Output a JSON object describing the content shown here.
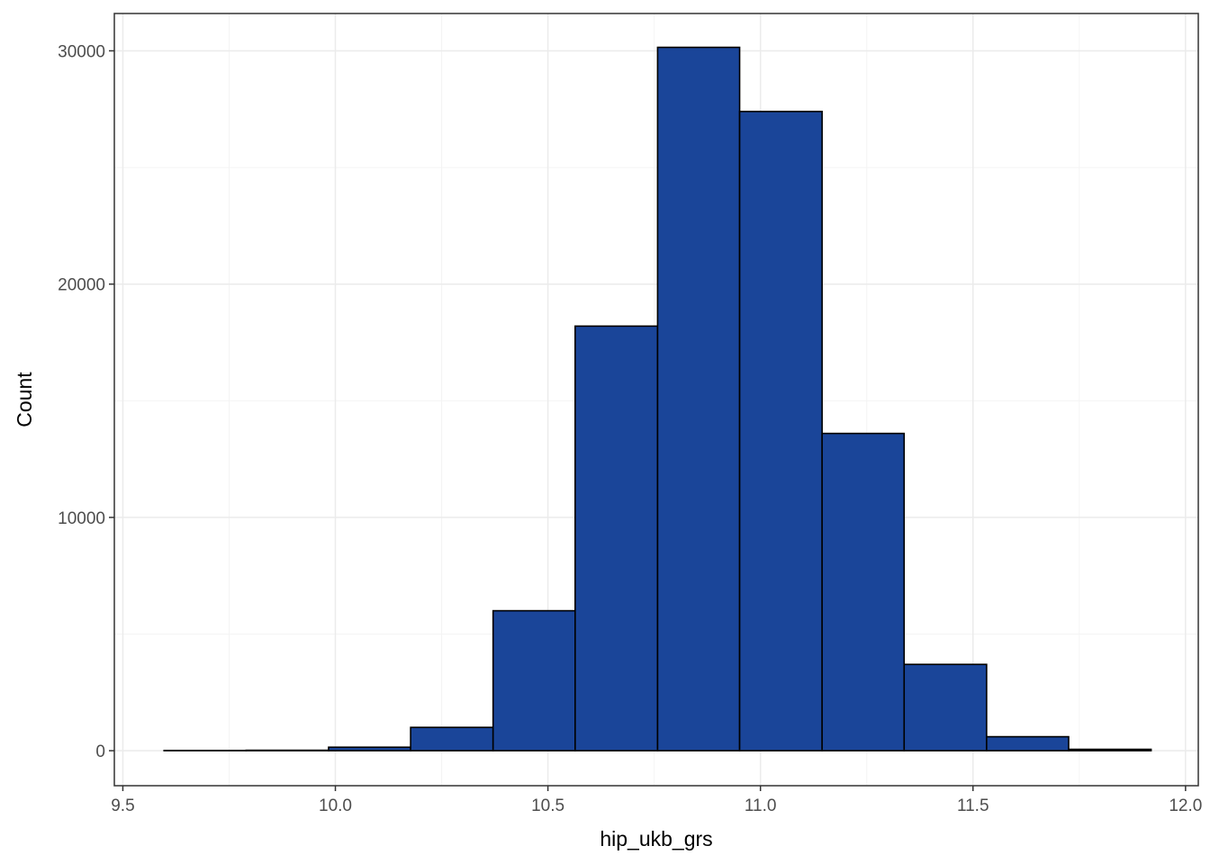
{
  "chart_data": {
    "type": "histogram",
    "title": "",
    "xlabel": "hip_ukb_grs",
    "ylabel": "Count",
    "xlim": [
      9.48,
      12.03
    ],
    "ylim": [
      -1500,
      31600
    ],
    "x_ticks": [
      9.5,
      10.0,
      10.5,
      11.0,
      11.5,
      12.0
    ],
    "x_tick_labels": [
      "9.5",
      "10.0",
      "10.5",
      "11.0",
      "11.5",
      "12.0"
    ],
    "y_ticks": [
      0,
      10000,
      20000,
      30000
    ],
    "y_tick_labels": [
      "0",
      "10000",
      "20000",
      "30000"
    ],
    "grid": true,
    "bins": [
      {
        "x0": 9.597,
        "x1": 9.79,
        "count": 10
      },
      {
        "x0": 9.79,
        "x1": 9.984,
        "count": 20
      },
      {
        "x0": 9.984,
        "x1": 10.177,
        "count": 150
      },
      {
        "x0": 10.177,
        "x1": 10.371,
        "count": 1000
      },
      {
        "x0": 10.371,
        "x1": 10.564,
        "count": 6000
      },
      {
        "x0": 10.564,
        "x1": 10.758,
        "count": 18200
      },
      {
        "x0": 10.758,
        "x1": 10.951,
        "count": 30150
      },
      {
        "x0": 10.951,
        "x1": 11.145,
        "count": 27400
      },
      {
        "x0": 11.145,
        "x1": 11.338,
        "count": 13600
      },
      {
        "x0": 11.338,
        "x1": 11.532,
        "count": 3700
      },
      {
        "x0": 11.532,
        "x1": 11.725,
        "count": 600
      },
      {
        "x0": 11.725,
        "x1": 11.919,
        "count": 60
      }
    ],
    "colors": {
      "bar_fill": "#1a4599",
      "bar_stroke": "#000000",
      "grid_major": "#ebebeb",
      "grid_minor": "#f4f4f4",
      "panel_border": "#333333",
      "tick_label": "#4d4d4d"
    }
  }
}
